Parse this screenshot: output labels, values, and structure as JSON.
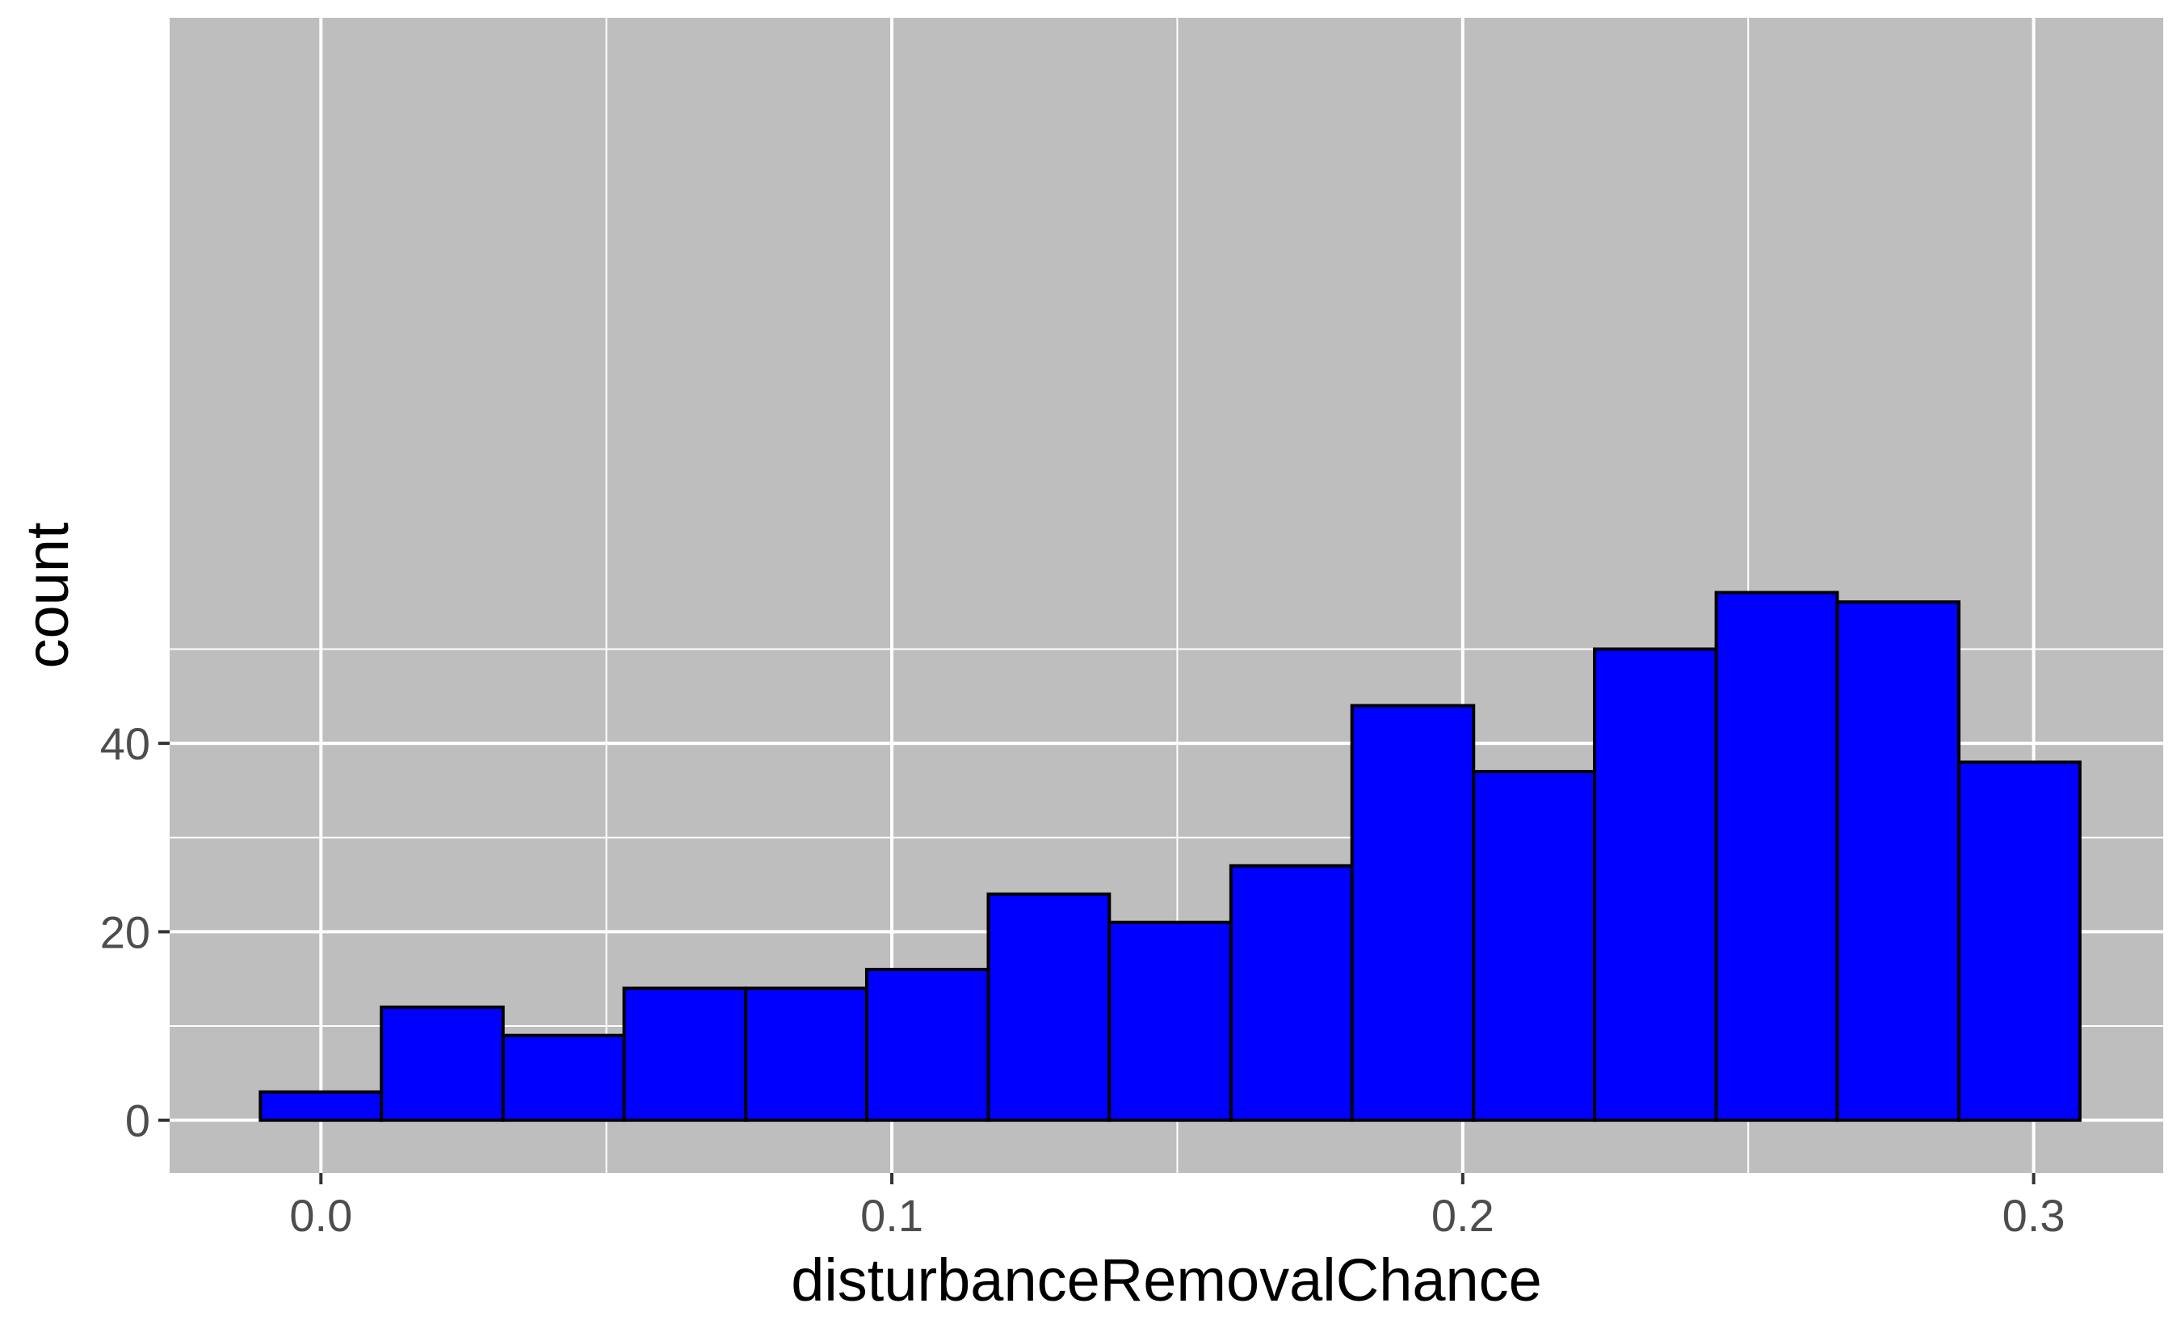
{
  "chart_data": {
    "type": "bar",
    "subtype": "histogram",
    "title": "",
    "xlabel": "disturbanceRemovalChance",
    "ylabel": "count",
    "xlim": [
      -0.0265,
      0.3227
    ],
    "ylim": [
      -5.6,
      117
    ],
    "bin_width": 0.02125,
    "bins": [
      {
        "x_start": -0.0106,
        "x_end": 0.0106,
        "count": 3
      },
      {
        "x_start": 0.0106,
        "x_end": 0.0319,
        "count": 12
      },
      {
        "x_start": 0.0319,
        "x_end": 0.0531,
        "count": 9
      },
      {
        "x_start": 0.0531,
        "x_end": 0.0744,
        "count": 14
      },
      {
        "x_start": 0.0744,
        "x_end": 0.0956,
        "count": 14
      },
      {
        "x_start": 0.0956,
        "x_end": 0.1169,
        "count": 16
      },
      {
        "x_start": 0.1169,
        "x_end": 0.1381,
        "count": 24
      },
      {
        "x_start": 0.1381,
        "x_end": 0.1594,
        "count": 21
      },
      {
        "x_start": 0.1594,
        "x_end": 0.1806,
        "count": 27
      },
      {
        "x_start": 0.1806,
        "x_end": 0.2019,
        "count": 44
      },
      {
        "x_start": 0.2019,
        "x_end": 0.2231,
        "count": 37
      },
      {
        "x_start": 0.2231,
        "x_end": 0.2444,
        "count": 50
      },
      {
        "x_start": 0.2444,
        "x_end": 0.2656,
        "count": 56
      },
      {
        "x_start": 0.2656,
        "x_end": 0.2869,
        "count": 55
      },
      {
        "x_start": 0.2869,
        "x_end": 0.3081,
        "count": 38
      }
    ],
    "x_ticks": [
      {
        "value": 0.0,
        "label": "0.0"
      },
      {
        "value": 0.1,
        "label": "0.1"
      },
      {
        "value": 0.2,
        "label": "0.2"
      },
      {
        "value": 0.3,
        "label": "0.3"
      }
    ],
    "x_minor_gridlines": [
      0.05,
      0.15,
      0.25
    ],
    "y_ticks": [
      {
        "value": 0,
        "label": "0"
      },
      {
        "value": 20,
        "label": "20"
      },
      {
        "value": 40,
        "label": "40"
      }
    ],
    "y_minor_gridlines": [
      10,
      30,
      50
    ],
    "grid": true,
    "legend": "none",
    "colors": {
      "bar_fill": "#0000ff",
      "bar_outline": "#000000",
      "panel_background": "#bebebe",
      "gridline": "#ffffff",
      "tick_label": "#4d4d4d",
      "axis_title": "#000000"
    }
  }
}
